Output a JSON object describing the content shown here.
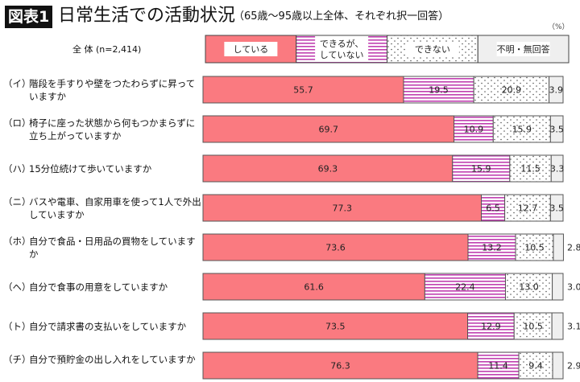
{
  "title_badge": "図表1",
  "title": "日常生活での活動状況",
  "subtitle": "（65歳～95歳以上全体、それぞれ択一回答）",
  "unit": "（%）",
  "chart_data": {
    "type": "bar",
    "orientation": "horizontal",
    "stacked": true,
    "percent": true,
    "xlim": [
      0,
      100
    ],
    "legend_row_label": "全 体 (n=2,414)",
    "legend_placement": "top",
    "categories": [
      {
        "prefix": "（イ）",
        "label": "階段を手すりや壁をつたわらずに昇っていますか"
      },
      {
        "prefix": "（ロ）",
        "label": "椅子に座った状態から何もつかまらずに立ち上がっていますか"
      },
      {
        "prefix": "（ハ）",
        "label": "15分位続けて歩いていますか"
      },
      {
        "prefix": "（ニ）",
        "label": "バスや電車、自家用車を使って1人で外出していますか"
      },
      {
        "prefix": "（ホ）",
        "label": "自分で食品・日用品の買物をしていますか"
      },
      {
        "prefix": "（ヘ）",
        "label": "自分で食事の用意をしていますか"
      },
      {
        "prefix": "（ト）",
        "label": "自分で請求書の支払いをしていますか"
      },
      {
        "prefix": "（チ）",
        "label": "自分で預貯金の出し入れをしていますか"
      }
    ],
    "series": [
      {
        "name": "している",
        "color": "#fa7a80",
        "pattern": "solid",
        "values": [
          55.7,
          69.7,
          69.3,
          77.3,
          73.6,
          61.6,
          73.5,
          76.3
        ]
      },
      {
        "name": "できるが、していない",
        "color": "#c040b0",
        "pattern": "horizontal-stripes",
        "values": [
          19.5,
          10.9,
          15.9,
          6.5,
          13.2,
          22.4,
          12.9,
          11.4
        ]
      },
      {
        "name": "できない",
        "color": "#555555",
        "pattern": "dots",
        "values": [
          20.9,
          15.9,
          11.5,
          12.7,
          10.5,
          13.0,
          10.5,
          9.4
        ]
      },
      {
        "name": "不明・無回答",
        "color": "#eeeeee",
        "pattern": "solid",
        "values": [
          3.9,
          3.5,
          3.3,
          3.5,
          2.8,
          3.0,
          3.1,
          2.9
        ]
      }
    ]
  }
}
